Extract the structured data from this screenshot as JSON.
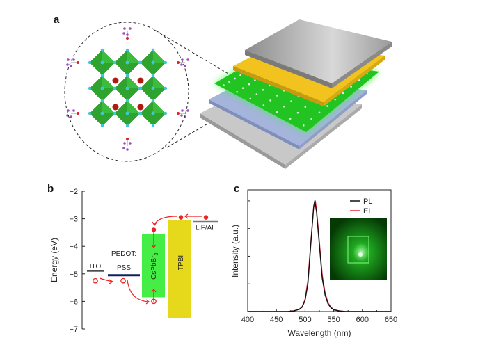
{
  "panels": {
    "a": {
      "label": "a"
    },
    "b": {
      "label": "b"
    },
    "c": {
      "label": "c"
    }
  },
  "colors": {
    "octahedra": "#2ea32e",
    "halide": "#3cc8d8",
    "cesium": "#b01a10",
    "ligand": "#9a50c0",
    "cathode": "#a8a8a8",
    "gold_layer": "#f0c020",
    "emissive_layer": "#22d022",
    "blue_layer": "#a0b0d8",
    "substrate": "#c0c0c0",
    "perovskite_bar": "#44ee44",
    "tpbi_bar": "#e6d81a",
    "pedot_line": "#10205a",
    "carrier": "#ee2222",
    "pl": "#111111",
    "el": "#ee2233"
  },
  "chart_data": [
    {
      "type": "energy-level-diagram",
      "ylabel": "Energy (eV)",
      "ylim": [
        -7,
        -2
      ],
      "yticks": [
        "−2",
        "−3",
        "−4",
        "−5",
        "−6",
        "−7"
      ],
      "yticks_values": [
        -2,
        -3,
        -4,
        -5,
        -6,
        -7
      ],
      "levels": [
        {
          "name": "ITO",
          "energy": -4.9,
          "type": "line"
        },
        {
          "name": "PEDOT:\nPSS",
          "name_lines": [
            "PEDOT:",
            "PSS"
          ],
          "energy": -5.05,
          "type": "line"
        },
        {
          "name": "CsPbBr3",
          "label_main": "CsPbBr",
          "label_sub": "3",
          "top": -3.55,
          "bottom": -5.85,
          "type": "bar"
        },
        {
          "name": "TPBI",
          "top": -3.05,
          "bottom": -6.6,
          "type": "bar"
        },
        {
          "name": "LiF/Al",
          "energy": -3.1,
          "type": "line"
        }
      ],
      "electrons": [
        -2.95,
        -2.95,
        -3.4
      ],
      "holes": [
        -5.2,
        -5.2,
        -6.0
      ]
    },
    {
      "type": "line",
      "xlabel": "Wavelength (nm)",
      "ylabel": "Intensity (a.u.)",
      "xlim": [
        400,
        650
      ],
      "ylim": [
        0,
        1.1
      ],
      "xticks": [
        400,
        450,
        500,
        550,
        600,
        650
      ],
      "xtick_labels": [
        "400",
        "450",
        "500",
        "550",
        "600",
        "650"
      ],
      "yticks_unlabeled": [
        0.25,
        0.5,
        0.75,
        1.0
      ],
      "legend_placement": "top-right",
      "inset": "photo of green-emitting device",
      "series": [
        {
          "name": "PL",
          "x": [
            400,
            470,
            480,
            490,
            495,
            500,
            505,
            510,
            515,
            517,
            520,
            525,
            530,
            535,
            540,
            545,
            550,
            560,
            570,
            650
          ],
          "y": [
            0,
            0,
            0.005,
            0.02,
            0.04,
            0.1,
            0.25,
            0.6,
            0.95,
            1.0,
            0.9,
            0.6,
            0.3,
            0.15,
            0.07,
            0.035,
            0.015,
            0.005,
            0,
            0
          ]
        },
        {
          "name": "EL",
          "x": [
            400,
            470,
            480,
            490,
            495,
            500,
            505,
            510,
            515,
            518,
            520,
            525,
            530,
            535,
            540,
            545,
            550,
            560,
            570,
            650
          ],
          "y": [
            0,
            0,
            0.006,
            0.022,
            0.045,
            0.11,
            0.28,
            0.62,
            0.94,
            1.0,
            0.92,
            0.63,
            0.33,
            0.17,
            0.08,
            0.04,
            0.018,
            0.006,
            0,
            0
          ]
        }
      ]
    }
  ]
}
